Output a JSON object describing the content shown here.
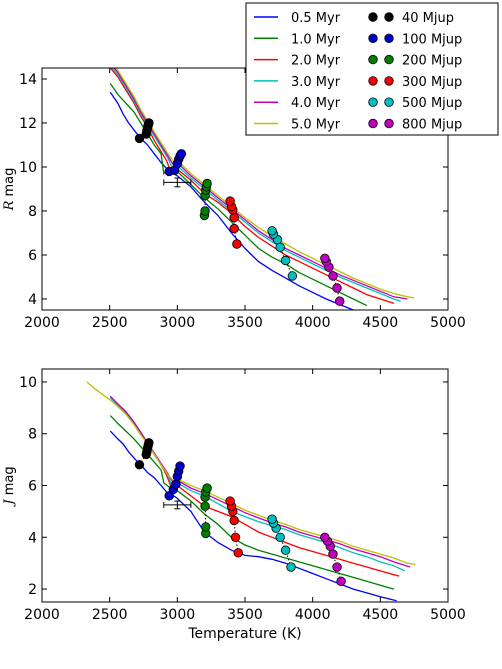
{
  "chart_data": [
    {
      "type": "line",
      "ylabel": "R mag",
      "xlabel": "",
      "xlim": [
        2000,
        5000
      ],
      "ylim": [
        3.5,
        14.5
      ],
      "xticks": [
        2000,
        2500,
        3000,
        3500,
        4000,
        4500,
        5000
      ],
      "yticks": [
        4,
        6,
        8,
        10,
        12,
        14
      ],
      "grid": false,
      "series": [
        {
          "name": "0.5 Myr",
          "color": "#0000ff",
          "x": [
            2505,
            2560,
            2600,
            2640,
            2690,
            2730,
            2780,
            2830,
            2880,
            2940,
            3000,
            3100,
            3200,
            3300,
            3400,
            3500,
            3600,
            3700,
            3800,
            3900,
            4000,
            4100,
            4200,
            4300
          ],
          "y": [
            13.4,
            12.9,
            12.4,
            12.0,
            11.6,
            11.3,
            11.0,
            10.6,
            10.2,
            9.8,
            9.6,
            9.1,
            8.4,
            7.8,
            7.0,
            6.3,
            5.7,
            5.3,
            4.95,
            4.6,
            4.3,
            4.0,
            3.75,
            3.5
          ]
        },
        {
          "name": "1.0 Myr",
          "color": "#008000",
          "x": [
            2505,
            2560,
            2620,
            2680,
            2730,
            2780,
            2830,
            2880,
            2900,
            2950,
            3000,
            3100,
            3200,
            3300,
            3400,
            3500,
            3600,
            3700,
            3800,
            3900,
            4000,
            4100,
            4200,
            4300,
            4400
          ],
          "y": [
            13.8,
            13.3,
            12.9,
            12.5,
            12.0,
            11.5,
            11.0,
            10.6,
            9.7,
            9.9,
            9.8,
            9.2,
            8.6,
            8.1,
            7.5,
            6.9,
            6.3,
            5.9,
            5.6,
            5.2,
            4.9,
            4.6,
            4.3,
            4.0,
            3.7
          ]
        },
        {
          "name": "2.0 Myr",
          "color": "#ff0000",
          "x": [
            2505,
            2560,
            2620,
            2680,
            2730,
            2780,
            2830,
            2880,
            2920,
            2950,
            3000,
            3100,
            3200,
            3300,
            3400,
            3500,
            3600,
            3700,
            3800,
            3900,
            4000,
            4100,
            4200,
            4300,
            4400,
            4500,
            4600
          ],
          "y": [
            14.5,
            14.1,
            13.5,
            12.9,
            12.3,
            11.8,
            11.2,
            10.7,
            10.3,
            9.8,
            9.9,
            9.4,
            8.8,
            8.4,
            7.9,
            7.3,
            6.8,
            6.4,
            6.0,
            5.7,
            5.4,
            5.1,
            4.8,
            4.5,
            4.2,
            4.0,
            3.8
          ]
        },
        {
          "name": "3.0 Myr",
          "color": "#00bfbf",
          "x": [
            2505,
            2560,
            2620,
            2680,
            2730,
            2780,
            2830,
            2880,
            2930,
            2960,
            3000,
            3100,
            3200,
            3300,
            3400,
            3500,
            3600,
            3700,
            3800,
            3900,
            4000,
            4100,
            4200,
            4300,
            4400,
            4500,
            4600,
            4650
          ],
          "y": [
            14.6,
            14.2,
            13.6,
            13.0,
            12.4,
            11.9,
            11.4,
            10.9,
            10.4,
            10.0,
            10.05,
            9.5,
            9.0,
            8.5,
            8.0,
            7.5,
            7.0,
            6.6,
            6.2,
            5.9,
            5.6,
            5.3,
            5.0,
            4.75,
            4.5,
            4.25,
            4.0,
            3.9
          ]
        },
        {
          "name": "4.0 Myr",
          "color": "#bf00bf",
          "x": [
            2505,
            2560,
            2620,
            2680,
            2730,
            2780,
            2830,
            2880,
            2930,
            2970,
            3000,
            3100,
            3200,
            3300,
            3400,
            3500,
            3600,
            3700,
            3800,
            3900,
            4000,
            4100,
            4200,
            4300,
            4400,
            4500,
            4600,
            4700
          ],
          "y": [
            14.7,
            14.3,
            13.7,
            13.1,
            12.5,
            12.0,
            11.5,
            11.0,
            10.5,
            10.1,
            10.2,
            9.6,
            9.1,
            8.6,
            8.1,
            7.6,
            7.1,
            6.7,
            6.3,
            6.0,
            5.7,
            5.4,
            5.1,
            4.85,
            4.6,
            4.35,
            4.1,
            4.0
          ]
        },
        {
          "name": "5.0 Myr",
          "color": "#bfbf00",
          "x": [
            2505,
            2560,
            2620,
            2680,
            2730,
            2780,
            2830,
            2880,
            2930,
            2980,
            3000,
            3100,
            3200,
            3300,
            3400,
            3500,
            3600,
            3700,
            3800,
            3900,
            4000,
            4100,
            4200,
            4300,
            4400,
            4500,
            4600,
            4700,
            4750
          ],
          "y": [
            14.8,
            14.4,
            13.8,
            13.2,
            12.6,
            12.1,
            11.6,
            11.1,
            10.6,
            10.2,
            10.3,
            9.7,
            9.2,
            8.7,
            8.2,
            7.7,
            7.25,
            6.85,
            6.5,
            6.15,
            5.85,
            5.55,
            5.25,
            4.95,
            4.7,
            4.45,
            4.25,
            4.1,
            4.05
          ]
        }
      ],
      "mass_markers": [
        {
          "name": "40 Mjup",
          "color": "#000000",
          "x": [
            2720,
            2770,
            2775,
            2780,
            2785,
            2790
          ],
          "y": [
            11.3,
            11.5,
            11.65,
            11.8,
            11.9,
            12.0
          ]
        },
        {
          "name": "100 Mjup",
          "color": "#0000cc",
          "x": [
            2940,
            2980,
            3000,
            3010,
            3020,
            3030
          ],
          "y": [
            9.8,
            9.85,
            10.15,
            10.35,
            10.5,
            10.6
          ]
        },
        {
          "name": "200 Mjup",
          "color": "#008000",
          "x": [
            3200,
            3205,
            3205,
            3210,
            3215,
            3220
          ],
          "y": [
            7.8,
            8.0,
            8.7,
            8.95,
            9.1,
            9.25
          ]
        },
        {
          "name": "300 Mjup",
          "color": "#ff0000",
          "x": [
            3440,
            3420,
            3420,
            3410,
            3400,
            3390
          ],
          "y": [
            6.5,
            7.2,
            7.7,
            8.05,
            8.2,
            8.45
          ]
        },
        {
          "name": "500 Mjup",
          "color": "#00bfbf",
          "x": [
            3850,
            3800,
            3760,
            3740,
            3710,
            3700
          ],
          "y": [
            5.05,
            5.75,
            6.35,
            6.7,
            6.95,
            7.1
          ]
        },
        {
          "name": "800 Mjup",
          "color": "#bf00bf",
          "x": [
            4200,
            4180,
            4150,
            4120,
            4100,
            4090
          ],
          "y": [
            3.9,
            4.5,
            5.05,
            5.45,
            5.7,
            5.85
          ]
        }
      ],
      "data_point": {
        "x": 3000,
        "y": 9.3,
        "xerr": 100,
        "yerr": 0.2
      }
    },
    {
      "type": "line",
      "ylabel": "J mag",
      "xlabel": "Temperature (K)",
      "xlim": [
        2000,
        5000
      ],
      "ylim": [
        1.5,
        10.5
      ],
      "xticks": [
        2000,
        2500,
        3000,
        3500,
        4000,
        4500,
        5000
      ],
      "yticks": [
        2,
        4,
        6,
        8,
        10
      ],
      "grid": false,
      "series": [
        {
          "name": "0.5 Myr",
          "color": "#0000ff",
          "x": [
            2505,
            2560,
            2600,
            2640,
            2690,
            2730,
            2780,
            2830,
            2880,
            2920,
            2960,
            3000,
            3100,
            3200,
            3300,
            3400,
            3500,
            3600,
            3700,
            3800,
            3900,
            4000,
            4100,
            4200,
            4300,
            4400,
            4500,
            4620
          ],
          "y": [
            8.1,
            7.8,
            7.6,
            7.3,
            7.0,
            6.8,
            6.5,
            6.3,
            6.0,
            5.75,
            5.65,
            5.5,
            5.0,
            4.2,
            3.8,
            3.5,
            3.3,
            3.25,
            3.15,
            3.0,
            2.8,
            2.6,
            2.4,
            2.2,
            2.0,
            1.85,
            1.7,
            1.55
          ]
        },
        {
          "name": "1.0 Myr",
          "color": "#008000",
          "x": [
            2505,
            2560,
            2620,
            2680,
            2730,
            2780,
            2830,
            2880,
            2900,
            2950,
            3000,
            3100,
            3200,
            3300,
            3400,
            3500,
            3600,
            3700,
            3800,
            3900,
            4000,
            4100,
            4200,
            4300,
            4400,
            4500,
            4600
          ],
          "y": [
            8.7,
            8.4,
            8.1,
            7.8,
            7.5,
            7.2,
            6.9,
            6.6,
            6.1,
            5.9,
            5.8,
            5.4,
            4.9,
            4.5,
            4.0,
            3.7,
            3.5,
            3.35,
            3.2,
            3.05,
            2.9,
            2.75,
            2.6,
            2.45,
            2.3,
            2.15,
            2.0
          ]
        },
        {
          "name": "2.0 Myr",
          "color": "#ff0000",
          "x": [
            2505,
            2560,
            2620,
            2680,
            2730,
            2780,
            2830,
            2880,
            2920,
            2950,
            3000,
            3100,
            3200,
            3300,
            3400,
            3500,
            3600,
            3700,
            3800,
            3900,
            4000,
            4100,
            4200,
            4300,
            4400,
            4500,
            4600,
            4640
          ],
          "y": [
            9.4,
            9.1,
            8.8,
            8.4,
            8.0,
            7.6,
            7.2,
            6.8,
            6.4,
            6.0,
            6.0,
            5.6,
            5.2,
            5.0,
            4.8,
            4.5,
            4.2,
            4.0,
            3.8,
            3.6,
            3.45,
            3.3,
            3.15,
            3.0,
            2.85,
            2.7,
            2.55,
            2.5
          ]
        },
        {
          "name": "3.0 Myr",
          "color": "#00bfbf",
          "x": [
            2505,
            2560,
            2620,
            2680,
            2730,
            2780,
            2830,
            2880,
            2930,
            2960,
            3000,
            3100,
            3200,
            3300,
            3400,
            3500,
            3600,
            3700,
            3800,
            3900,
            4000,
            4100,
            4200,
            4300,
            4400,
            4500,
            4600,
            4680
          ],
          "y": [
            9.4,
            9.1,
            8.8,
            8.4,
            8.0,
            7.6,
            7.2,
            6.8,
            6.4,
            6.0,
            6.1,
            5.8,
            5.6,
            5.3,
            5.0,
            4.8,
            4.6,
            4.45,
            4.3,
            4.1,
            3.95,
            3.8,
            3.6,
            3.4,
            3.25,
            3.05,
            2.9,
            2.7
          ]
        },
        {
          "name": "4.0 Myr",
          "color": "#bf00bf",
          "x": [
            2505,
            2560,
            2620,
            2680,
            2730,
            2780,
            2830,
            2880,
            2930,
            2970,
            3000,
            3100,
            3200,
            3300,
            3400,
            3500,
            3600,
            3700,
            3800,
            3900,
            4000,
            4100,
            4200,
            4300,
            4400,
            4500,
            4600,
            4720
          ],
          "y": [
            9.45,
            9.15,
            8.85,
            8.45,
            8.05,
            7.65,
            7.25,
            6.85,
            6.45,
            6.1,
            6.2,
            5.9,
            5.7,
            5.45,
            5.2,
            4.95,
            4.75,
            4.55,
            4.4,
            4.2,
            4.05,
            3.9,
            3.75,
            3.55,
            3.4,
            3.25,
            3.05,
            2.85
          ]
        },
        {
          "name": "5.0 Myr",
          "color": "#bfbf00",
          "x": [
            2330,
            2400,
            2505,
            2560,
            2620,
            2680,
            2730,
            2780,
            2830,
            2880,
            2930,
            2980,
            3000,
            3100,
            3200,
            3300,
            3400,
            3500,
            3600,
            3700,
            3800,
            3900,
            4000,
            4100,
            4200,
            4300,
            4400,
            4500,
            4600,
            4700,
            4760
          ],
          "y": [
            10.0,
            9.7,
            9.3,
            9.05,
            8.75,
            8.35,
            7.95,
            7.6,
            7.2,
            6.8,
            6.4,
            6.15,
            6.25,
            6.0,
            5.8,
            5.55,
            5.3,
            5.05,
            4.85,
            4.65,
            4.5,
            4.3,
            4.15,
            4.0,
            3.85,
            3.65,
            3.5,
            3.35,
            3.2,
            3.0,
            2.95
          ]
        }
      ],
      "mass_markers": [
        {
          "name": "40 Mjup",
          "color": "#000000",
          "x": [
            2720,
            2770,
            2775,
            2780,
            2785,
            2790
          ],
          "y": [
            6.8,
            7.2,
            7.3,
            7.45,
            7.55,
            7.65
          ]
        },
        {
          "name": "100 Mjup",
          "color": "#0000cc",
          "x": [
            2940,
            2970,
            2990,
            3000,
            3010,
            3020
          ],
          "y": [
            5.6,
            5.85,
            6.05,
            6.35,
            6.55,
            6.75
          ]
        },
        {
          "name": "200 Mjup",
          "color": "#008000",
          "x": [
            3210,
            3210,
            3205,
            3205,
            3210,
            3220
          ],
          "y": [
            4.15,
            4.4,
            5.2,
            5.55,
            5.75,
            5.9
          ]
        },
        {
          "name": "300 Mjup",
          "color": "#ff0000",
          "x": [
            3450,
            3430,
            3420,
            3410,
            3400,
            3390
          ],
          "y": [
            3.4,
            4.0,
            4.65,
            5.0,
            5.2,
            5.4
          ]
        },
        {
          "name": "500 Mjup",
          "color": "#00bfbf",
          "x": [
            3840,
            3800,
            3760,
            3730,
            3710,
            3700
          ],
          "y": [
            2.85,
            3.5,
            4.0,
            4.35,
            4.55,
            4.7
          ]
        },
        {
          "name": "800 Mjup",
          "color": "#bf00bf",
          "x": [
            4210,
            4180,
            4150,
            4130,
            4110,
            4090
          ],
          "y": [
            2.3,
            2.85,
            3.35,
            3.65,
            3.85,
            4.0
          ]
        }
      ],
      "data_point": {
        "x": 3000,
        "y": 5.25,
        "xerr": 100,
        "yerr": 0.15
      }
    }
  ]
}
